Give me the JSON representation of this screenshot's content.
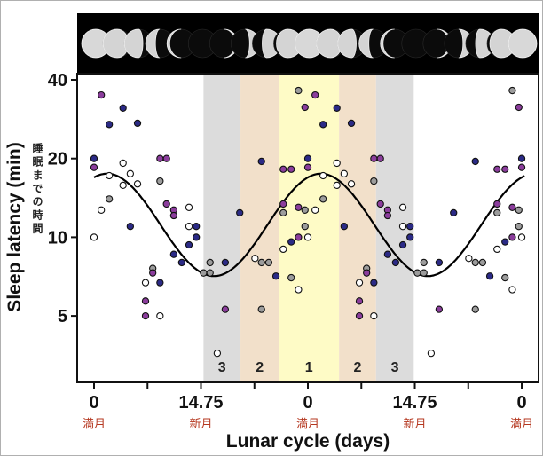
{
  "chart_data": {
    "type": "scatter",
    "title": "",
    "xlabel": "Lunar cycle (days)",
    "ylabel": "Sleep latency (min)",
    "ylabel_jp": "睡眠までの時間",
    "yscale": "log2",
    "ylim": [
      2.8,
      42
    ],
    "yticks": [
      40,
      20,
      10,
      5
    ],
    "cycle_length_days": 29.5,
    "xlim_days": [
      0,
      59.5
    ],
    "xticks": [
      {
        "day": 0,
        "label": "0",
        "sub": "満月"
      },
      {
        "day": 14.75,
        "label": "14.75",
        "sub": "新月"
      },
      {
        "day": 29.5,
        "label": "0",
        "sub": "満月"
      },
      {
        "day": 44.25,
        "label": "14.75",
        "sub": "新月"
      },
      {
        "day": 59,
        "label": "0",
        "sub": "満月"
      }
    ],
    "bands": [
      {
        "from": 15.1,
        "to": 20.2,
        "label": "3",
        "color": "#dcdcdc"
      },
      {
        "from": 20.2,
        "to": 25.5,
        "label": "2",
        "color": "#f2e0ca"
      },
      {
        "from": 25.5,
        "to": 33.8,
        "label": "1",
        "color": "#fefbc6"
      },
      {
        "from": 33.8,
        "to": 38.9,
        "label": "2",
        "color": "#f2e0ca"
      },
      {
        "from": 38.9,
        "to": 44.1,
        "label": "3",
        "color": "#dcdcdc"
      }
    ],
    "group_colors": {
      "navy": "#2b2a86",
      "purple": "#8b3d9c",
      "gray": "#9c9c9c",
      "white": "#ffffff"
    },
    "double_plotted": true,
    "points": [
      {
        "day": 0,
        "min": 20,
        "group": "navy"
      },
      {
        "day": 0,
        "min": 18.5,
        "group": "purple"
      },
      {
        "day": 0,
        "min": 10,
        "group": "white"
      },
      {
        "day": 1,
        "min": 35,
        "group": "purple"
      },
      {
        "day": 1,
        "min": 12.7,
        "group": "white"
      },
      {
        "day": 2.1,
        "min": 27,
        "group": "navy"
      },
      {
        "day": 2.1,
        "min": 17.2,
        "group": "white"
      },
      {
        "day": 2.1,
        "min": 14,
        "group": "gray"
      },
      {
        "day": 4,
        "min": 31.2,
        "group": "navy"
      },
      {
        "day": 4,
        "min": 19.2,
        "group": "white"
      },
      {
        "day": 4,
        "min": 15.8,
        "group": "white"
      },
      {
        "day": 5,
        "min": 17.5,
        "group": "white"
      },
      {
        "day": 5,
        "min": 11,
        "group": "navy"
      },
      {
        "day": 6,
        "min": 27.3,
        "group": "navy"
      },
      {
        "day": 6,
        "min": 16,
        "group": "white"
      },
      {
        "day": 7.1,
        "min": 6.7,
        "group": "white"
      },
      {
        "day": 7.1,
        "min": 5.7,
        "group": "purple"
      },
      {
        "day": 7.1,
        "min": 5,
        "group": "purple"
      },
      {
        "day": 8.1,
        "min": 7.6,
        "group": "gray"
      },
      {
        "day": 8.1,
        "min": 7.3,
        "group": "purple"
      },
      {
        "day": 9.1,
        "min": 20,
        "group": "purple"
      },
      {
        "day": 9.1,
        "min": 16.4,
        "group": "gray"
      },
      {
        "day": 9.1,
        "min": 6.7,
        "group": "navy"
      },
      {
        "day": 9.1,
        "min": 5,
        "group": "white"
      },
      {
        "day": 10,
        "min": 20,
        "group": "purple"
      },
      {
        "day": 10,
        "min": 13.4,
        "group": "purple"
      },
      {
        "day": 11,
        "min": 12.7,
        "group": "purple"
      },
      {
        "day": 11,
        "min": 12.1,
        "group": "purple"
      },
      {
        "day": 11,
        "min": 8.6,
        "group": "navy"
      },
      {
        "day": 12.1,
        "min": 8,
        "group": "navy"
      },
      {
        "day": 13.1,
        "min": 13,
        "group": "white"
      },
      {
        "day": 13.1,
        "min": 11,
        "group": "white"
      },
      {
        "day": 13.1,
        "min": 9.35,
        "group": "navy"
      },
      {
        "day": 14.1,
        "min": 11,
        "group": "navy"
      },
      {
        "day": 14.1,
        "min": 10,
        "group": "navy"
      },
      {
        "day": 15.1,
        "min": 7.3,
        "group": "gray"
      },
      {
        "day": 16,
        "min": 7.3,
        "group": "gray"
      },
      {
        "day": 16,
        "min": 8,
        "group": "gray"
      },
      {
        "day": 17,
        "min": 3.6,
        "group": "white"
      },
      {
        "day": 18.1,
        "min": 8,
        "group": "navy"
      },
      {
        "day": 18.1,
        "min": 5.3,
        "group": "purple"
      },
      {
        "day": 20.1,
        "min": 12.4,
        "group": "navy"
      },
      {
        "day": 22.2,
        "min": 8.3,
        "group": "white"
      },
      {
        "day": 23.1,
        "min": 8,
        "group": "gray"
      },
      {
        "day": 23.1,
        "min": 19.5,
        "group": "navy"
      },
      {
        "day": 23.1,
        "min": 5.3,
        "group": "gray"
      },
      {
        "day": 24.1,
        "min": 8,
        "group": "gray"
      },
      {
        "day": 25.1,
        "min": 7.1,
        "group": "navy"
      },
      {
        "day": 26.1,
        "min": 18.2,
        "group": "purple"
      },
      {
        "day": 26.1,
        "min": 13.4,
        "group": "purple"
      },
      {
        "day": 26.1,
        "min": 12.4,
        "group": "gray"
      },
      {
        "day": 26.1,
        "min": 9,
        "group": "white"
      },
      {
        "day": 27.2,
        "min": 18.2,
        "group": "purple"
      },
      {
        "day": 27.2,
        "min": 9.6,
        "group": "navy"
      },
      {
        "day": 27.2,
        "min": 7,
        "group": "gray"
      },
      {
        "day": 28.2,
        "min": 36.4,
        "group": "gray"
      },
      {
        "day": 28.2,
        "min": 13,
        "group": "purple"
      },
      {
        "day": 28.2,
        "min": 10,
        "group": "purple"
      },
      {
        "day": 28.2,
        "min": 6.3,
        "group": "white"
      },
      {
        "day": 29.1,
        "min": 31.4,
        "group": "purple"
      },
      {
        "day": 29.1,
        "min": 12.7,
        "group": "gray"
      },
      {
        "day": 29.1,
        "min": 11,
        "group": "gray"
      }
    ],
    "fit_curve": {
      "type": "cosine",
      "peak_day": 1.8,
      "max_min": 17.5,
      "min_min": 7.1
    },
    "moon_phases_strip": true
  }
}
